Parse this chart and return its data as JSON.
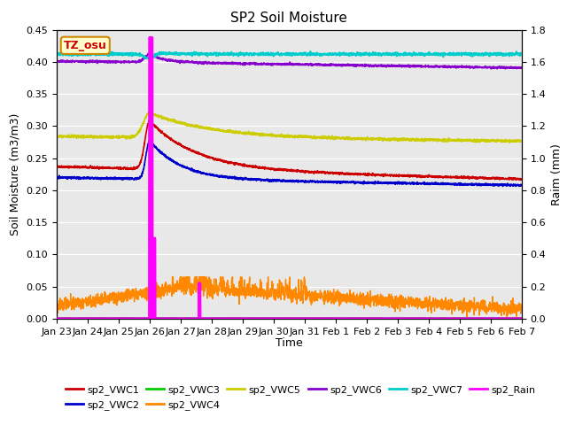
{
  "title": "SP2 Soil Moisture",
  "ylabel_left": "Soil Moisture (m3/m3)",
  "ylabel_right": "Raim (mm)",
  "xlabel": "Time",
  "ylim_left": [
    0.0,
    0.45
  ],
  "ylim_right": [
    0.0,
    1.8
  ],
  "background_color": "#e8e8e8",
  "annotation_text": "TZ_osu",
  "annotation_bg": "#ffffcc",
  "annotation_border": "#cc8800",
  "annotation_text_color": "#cc0000",
  "series": {
    "sp2_VWC1": {
      "color": "#cc0000",
      "lw": 1.2
    },
    "sp2_VWC2": {
      "color": "#0000cc",
      "lw": 1.2
    },
    "sp2_VWC3": {
      "color": "#00cc00",
      "lw": 1.2
    },
    "sp2_VWC4": {
      "color": "#ff8800",
      "lw": 1.0
    },
    "sp2_VWC5": {
      "color": "#cccc00",
      "lw": 1.2
    },
    "sp2_VWC6": {
      "color": "#8800cc",
      "lw": 1.2
    },
    "sp2_VWC7": {
      "color": "#00cccc",
      "lw": 1.2
    },
    "sp2_Rain": {
      "color": "#ff00ff",
      "lw": 2.5
    }
  },
  "xtick_labels": [
    "Jan 23",
    "Jan 24",
    "Jan 25",
    "Jan 26",
    "Jan 27",
    "Jan 28",
    "Jan 29",
    "Jan 30",
    "Jan 31",
    "Feb 1",
    "Feb 2",
    "Feb 3",
    "Feb 4",
    "Feb 5",
    "Feb 6",
    "Feb 7"
  ],
  "n_points": 2880,
  "figsize": [
    6.4,
    4.8
  ],
  "dpi": 100
}
